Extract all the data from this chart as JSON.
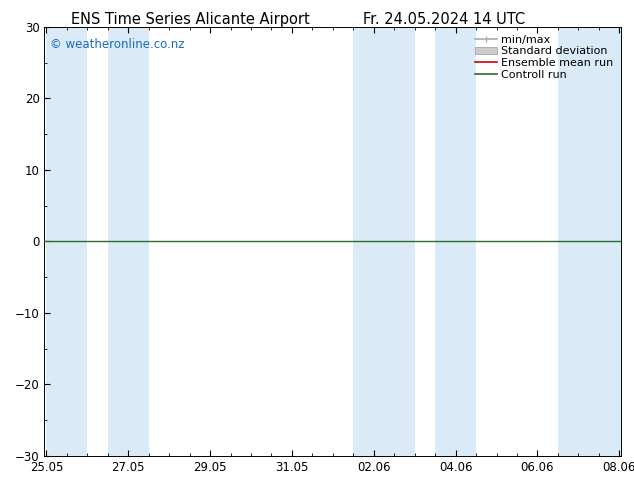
{
  "title_left": "ENS Time Series Alicante Airport",
  "title_right": "Fr. 24.05.2024 14 UTC",
  "ylim": [
    -30,
    30
  ],
  "yticks": [
    -30,
    -20,
    -10,
    0,
    10,
    20,
    30
  ],
  "xtick_labels": [
    "25.05",
    "27.05",
    "29.05",
    "31.05",
    "02.06",
    "04.06",
    "06.06",
    "08.06"
  ],
  "xtick_positions": [
    0,
    2,
    4,
    6,
    8,
    10,
    12,
    14
  ],
  "xlim": [
    -0.05,
    14.05
  ],
  "shaded_bands": [
    [
      0.0,
      1.0
    ],
    [
      1.5,
      2.5
    ],
    [
      7.5,
      9.0
    ],
    [
      9.5,
      10.5
    ],
    [
      12.5,
      14.05
    ]
  ],
  "shade_color": "#daeaf6",
  "control_run_color": "#2d6a2d",
  "watermark": "© weatheronline.co.nz",
  "watermark_color": "#1a6abf",
  "legend_items": [
    {
      "label": "min/max",
      "color": "#aaaaaa"
    },
    {
      "label": "Standard deviation",
      "color": "#cccccc"
    },
    {
      "label": "Ensemble mean run",
      "color": "#cc0000"
    },
    {
      "label": "Controll run",
      "color": "#2d6a2d"
    }
  ],
  "bg_color": "#ffffff",
  "title_fontsize": 10.5,
  "tick_fontsize": 8.5,
  "legend_fontsize": 8.0
}
